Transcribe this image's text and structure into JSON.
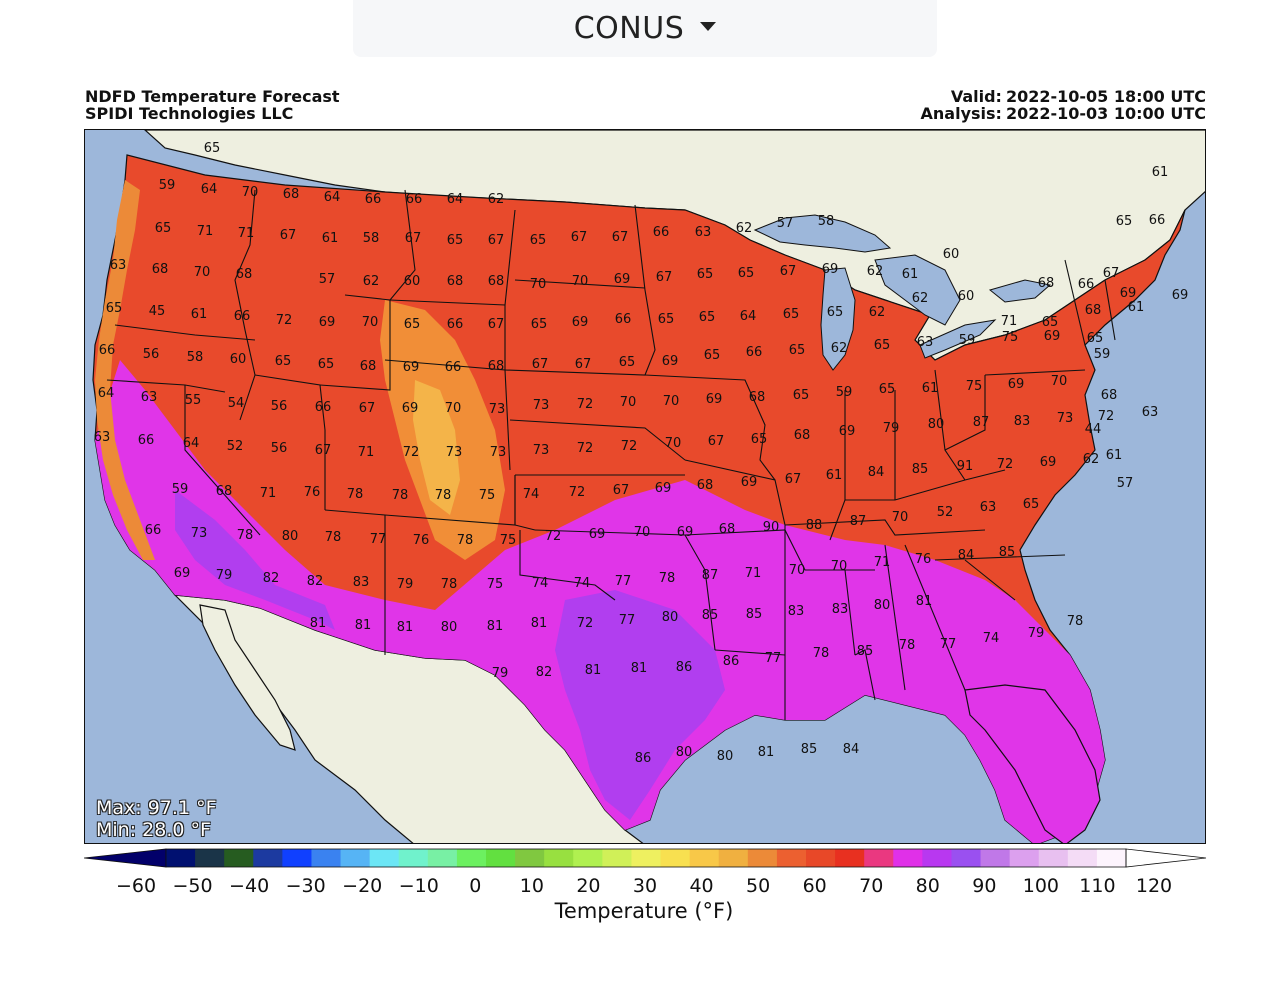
{
  "region_selector": {
    "label": "CONUS",
    "icon": "caret-down-icon"
  },
  "header": {
    "title": "NDFD Temperature Forecast",
    "organization": "SPIDI Technologies LLC",
    "valid_label": "Valid:",
    "valid_value": "2022-10-05 18:00 UTC",
    "analysis_label": "Analysis:",
    "analysis_value": "2022-10-03 10:00 UTC"
  },
  "stats": {
    "max": "Max: 97.1 °F",
    "min": "Min: 28.0 °F"
  },
  "colorbar": {
    "title": "Temperature (°F)",
    "ticks": [
      "−60",
      "−50",
      "−40",
      "−30",
      "−20",
      "−10",
      "0",
      "10",
      "20",
      "30",
      "40",
      "50",
      "60",
      "70",
      "80",
      "90",
      "100",
      "110",
      "120"
    ],
    "colors": [
      "#001070",
      "#1a3448",
      "#265c20",
      "#1c3aa0",
      "#1040ff",
      "#3a82f0",
      "#56b4f5",
      "#6ce6f5",
      "#70f2cc",
      "#78f0a4",
      "#6cf060",
      "#62e040",
      "#80c840",
      "#98e040",
      "#b0f050",
      "#d0f058",
      "#eef060",
      "#f8e050",
      "#f8c848",
      "#f0b040",
      "#ec8a38",
      "#ec6030",
      "#e84828",
      "#e83020",
      "#ea3880",
      "#e030e8",
      "#b838f0",
      "#9a50f0",
      "#c078e8",
      "#dca0ee",
      "#e8c0f0",
      "#f4dcf6",
      "#fdf4fd"
    ],
    "under_color": "#02006a",
    "over_color": "#ffffff"
  },
  "map": {
    "ocean_color": "#9db7da",
    "land_color": "#eeefe0",
    "lake_color": "#9db7da",
    "station_values": [
      "65",
      "59",
      "64",
      "70",
      "68",
      "64",
      "66",
      "66",
      "64",
      "62",
      "65",
      "71",
      "71",
      "67",
      "61",
      "58",
      "67",
      "65",
      "67",
      "65",
      "67",
      "67",
      "66",
      "63",
      "62",
      "57",
      "58",
      "66",
      "65",
      "61",
      "63",
      "68",
      "70",
      "68",
      "57",
      "62",
      "60",
      "68",
      "68",
      "70",
      "70",
      "69",
      "67",
      "65",
      "65",
      "67",
      "69",
      "62",
      "61",
      "60",
      "67",
      "68",
      "66",
      "69",
      "69",
      "65",
      "45",
      "61",
      "66",
      "72",
      "69",
      "70",
      "65",
      "66",
      "67",
      "65",
      "69",
      "66",
      "65",
      "65",
      "64",
      "65",
      "65",
      "62",
      "62",
      "60",
      "71",
      "65",
      "68",
      "61",
      "66",
      "56",
      "58",
      "60",
      "65",
      "65",
      "68",
      "69",
      "66",
      "68",
      "67",
      "67",
      "65",
      "69",
      "65",
      "66",
      "65",
      "62",
      "65",
      "63",
      "59",
      "75",
      "69",
      "65",
      "59",
      "64",
      "63",
      "55",
      "54",
      "56",
      "66",
      "67",
      "69",
      "70",
      "73",
      "73",
      "72",
      "70",
      "70",
      "69",
      "68",
      "65",
      "59",
      "65",
      "61",
      "75",
      "69",
      "70",
      "68",
      "63",
      "66",
      "64",
      "52",
      "56",
      "67",
      "71",
      "72",
      "73",
      "73",
      "73",
      "72",
      "72",
      "70",
      "67",
      "65",
      "68",
      "69",
      "79",
      "80",
      "87",
      "83",
      "73",
      "72",
      "63",
      "44",
      "59",
      "68",
      "71",
      "76",
      "78",
      "78",
      "78",
      "75",
      "74",
      "72",
      "67",
      "69",
      "68",
      "69",
      "67",
      "61",
      "84",
      "85",
      "91",
      "72",
      "69",
      "62",
      "57",
      "61",
      "66",
      "73",
      "78",
      "80",
      "78",
      "77",
      "76",
      "78",
      "75",
      "72",
      "69",
      "70",
      "69",
      "68",
      "90",
      "88",
      "87",
      "70",
      "52",
      "63",
      "65",
      "69",
      "79",
      "82",
      "82",
      "83",
      "79",
      "78",
      "75",
      "74",
      "74",
      "77",
      "78",
      "87",
      "71",
      "70",
      "70",
      "71",
      "76",
      "84",
      "85",
      "81",
      "81",
      "81",
      "80",
      "81",
      "81",
      "72",
      "77",
      "80",
      "85",
      "85",
      "83",
      "83",
      "80",
      "81",
      "79",
      "82",
      "81",
      "81",
      "86",
      "86",
      "77",
      "78",
      "85",
      "78",
      "77",
      "74",
      "79",
      "78",
      "86",
      "80",
      "80",
      "81",
      "85",
      "84"
    ]
  }
}
